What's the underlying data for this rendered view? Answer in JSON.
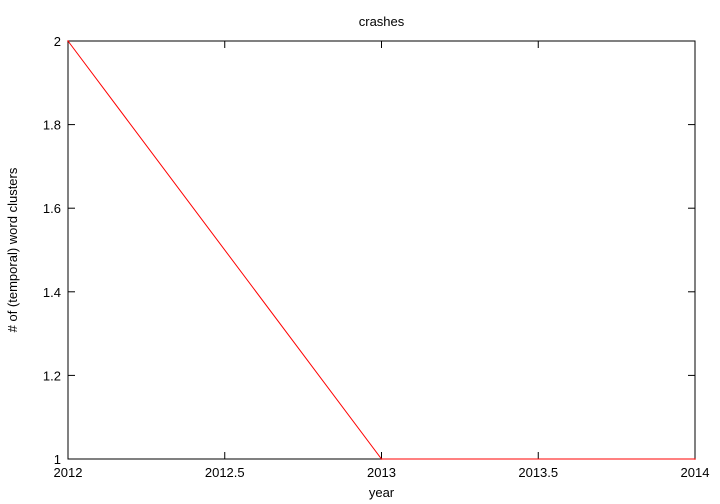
{
  "chart_data": {
    "type": "line",
    "title": "crashes",
    "xlabel": "year",
    "ylabel": "# of (temporal) word clusters",
    "xlim": [
      2012,
      2014
    ],
    "ylim": [
      1,
      2
    ],
    "x_ticks": [
      "2012",
      "2012.5",
      "2013",
      "2013.5",
      "2014"
    ],
    "y_ticks": [
      "1",
      "1.2",
      "1.4",
      "1.6",
      "1.8",
      "2"
    ],
    "grid": false,
    "legend": "none",
    "series": [
      {
        "color": "#ff0000",
        "x": [
          2012,
          2013,
          2014
        ],
        "y": [
          2,
          1,
          1
        ]
      }
    ]
  }
}
